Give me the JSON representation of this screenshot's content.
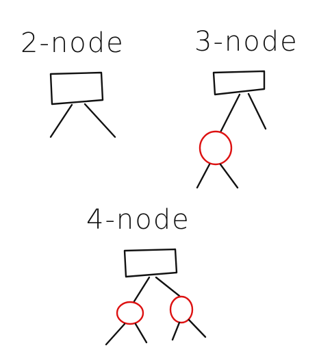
{
  "diagram": {
    "labels": {
      "two_node": "2-node",
      "three_node": "3-node",
      "four_node": "4-node"
    },
    "colors": {
      "ink": "#111111",
      "red_node": "#dd1111"
    }
  }
}
